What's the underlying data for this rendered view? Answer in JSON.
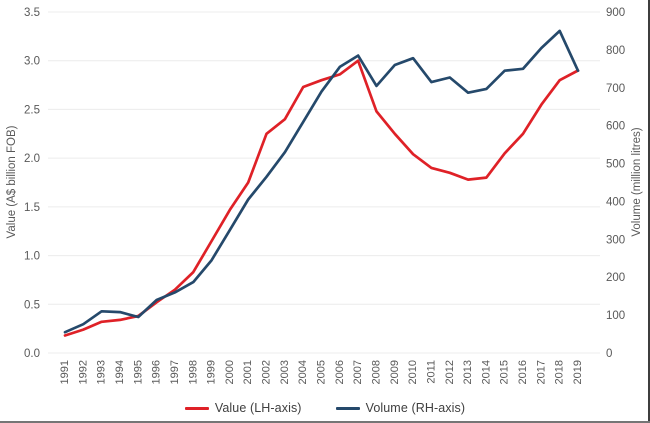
{
  "chart_data": {
    "type": "line",
    "title": "",
    "x": [
      "1991",
      "1992",
      "1993",
      "1994",
      "1995",
      "1996",
      "1997",
      "1998",
      "1999",
      "2000",
      "2001",
      "2002",
      "2003",
      "2004",
      "2005",
      "2006",
      "2007",
      "2008",
      "2009",
      "2010",
      "2011",
      "2012",
      "2013",
      "2014",
      "2015",
      "2016",
      "2017",
      "2018",
      "2019"
    ],
    "series": [
      {
        "name": "Value (LH-axis)",
        "axis": "left",
        "color": "#df2127",
        "values": [
          0.18,
          0.24,
          0.32,
          0.34,
          0.38,
          0.52,
          0.65,
          0.83,
          1.15,
          1.47,
          1.75,
          2.25,
          2.4,
          2.73,
          2.8,
          2.86,
          3.0,
          2.48,
          2.25,
          2.04,
          1.9,
          1.85,
          1.78,
          1.8,
          2.05,
          2.25,
          2.55,
          2.8,
          2.9
        ]
      },
      {
        "name": "Volume (RH-axis)",
        "axis": "right",
        "color": "#25496b",
        "values": [
          55,
          76,
          110,
          108,
          95,
          140,
          160,
          187,
          245,
          325,
          405,
          465,
          530,
          610,
          690,
          755,
          785,
          705,
          760,
          778,
          715,
          727,
          687,
          697,
          745,
          750,
          805,
          850,
          745
        ]
      }
    ],
    "left_axis": {
      "label": "Value (A$ billion FOB)",
      "min": 0,
      "max": 3.5,
      "step": 0.5,
      "tick_labels": [
        "0.0",
        "0.5",
        "1.0",
        "1.5",
        "2.0",
        "2.5",
        "3.0",
        "3.5"
      ]
    },
    "right_axis": {
      "label": "Volume (million litres)",
      "min": 0,
      "max": 900,
      "step": 100,
      "tick_labels": [
        "0",
        "100",
        "200",
        "300",
        "400",
        "500",
        "600",
        "700",
        "800",
        "900"
      ]
    },
    "grid": true,
    "legend_position": "bottom"
  },
  "legend": {
    "value_label": "Value (LH-axis)",
    "volume_label": "Volume (RH-axis)"
  },
  "colors": {
    "grid": "#ececec",
    "axis_text": "#595959",
    "legend_text": "#3f3f3f",
    "background": "#ffffff"
  }
}
